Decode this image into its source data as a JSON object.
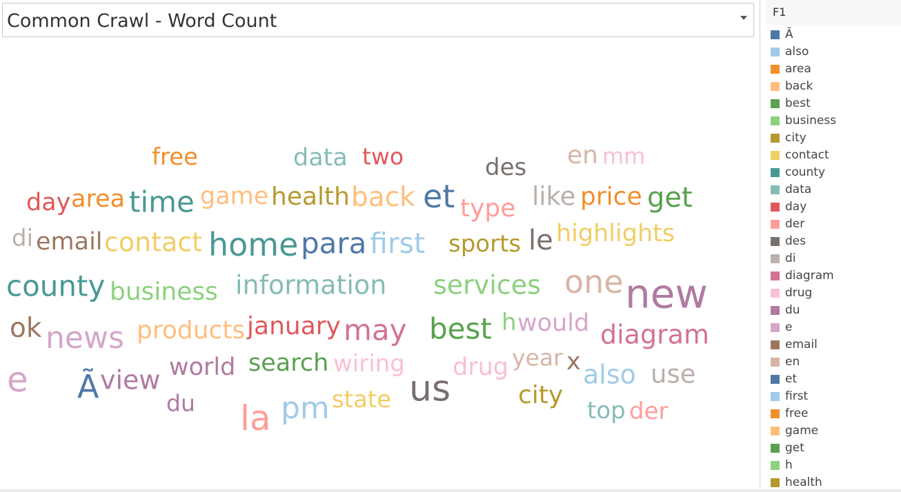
{
  "header": {
    "title": "Common Crawl - Word Count"
  },
  "legend": {
    "title": "F1",
    "items": [
      {
        "label": "Ã",
        "color": "#4e79a7"
      },
      {
        "label": "also",
        "color": "#a0cbe8"
      },
      {
        "label": "area",
        "color": "#f28e2b"
      },
      {
        "label": "back",
        "color": "#ffbe7d"
      },
      {
        "label": "best",
        "color": "#59a14f"
      },
      {
        "label": "business",
        "color": "#8cd17d"
      },
      {
        "label": "city",
        "color": "#b6992d"
      },
      {
        "label": "contact",
        "color": "#f1ce63"
      },
      {
        "label": "county",
        "color": "#499894"
      },
      {
        "label": "data",
        "color": "#86bcb6"
      },
      {
        "label": "day",
        "color": "#e15759"
      },
      {
        "label": "der",
        "color": "#ff9d9a"
      },
      {
        "label": "des",
        "color": "#79706e"
      },
      {
        "label": "di",
        "color": "#bab0ac"
      },
      {
        "label": "diagram",
        "color": "#d37295"
      },
      {
        "label": "drug",
        "color": "#fabfd2"
      },
      {
        "label": "du",
        "color": "#b07aa1"
      },
      {
        "label": "e",
        "color": "#d4a6c8"
      },
      {
        "label": "email",
        "color": "#9d7660"
      },
      {
        "label": "en",
        "color": "#d7b5a6"
      },
      {
        "label": "et",
        "color": "#4e79a7"
      },
      {
        "label": "first",
        "color": "#a0cbe8"
      },
      {
        "label": "free",
        "color": "#f28e2b"
      },
      {
        "label": "game",
        "color": "#ffbe7d"
      },
      {
        "label": "get",
        "color": "#59a14f"
      },
      {
        "label": "h",
        "color": "#8cd17d"
      },
      {
        "label": "health",
        "color": "#b6992d"
      }
    ]
  },
  "chart_data": {
    "type": "wordcloud",
    "words": [
      {
        "text": "free",
        "color": "#f28e2b",
        "weight": 34
      },
      {
        "text": "data",
        "color": "#86bcb6",
        "weight": 35
      },
      {
        "text": "two",
        "color": "#e15759",
        "weight": 33
      },
      {
        "text": "des",
        "color": "#79706e",
        "weight": 34
      },
      {
        "text": "en",
        "color": "#d7b5a6",
        "weight": 36
      },
      {
        "text": "mm",
        "color": "#fabfd2",
        "weight": 32
      },
      {
        "text": "day",
        "color": "#e15759",
        "weight": 35
      },
      {
        "text": "area",
        "color": "#f28e2b",
        "weight": 35
      },
      {
        "text": "time",
        "color": "#499894",
        "weight": 42
      },
      {
        "text": "game",
        "color": "#ffbe7d",
        "weight": 35
      },
      {
        "text": "health",
        "color": "#b6992d",
        "weight": 36
      },
      {
        "text": "back",
        "color": "#ffbe7d",
        "weight": 39
      },
      {
        "text": "et",
        "color": "#4e79a7",
        "weight": 46
      },
      {
        "text": "type",
        "color": "#ff9d9a",
        "weight": 36
      },
      {
        "text": "like",
        "color": "#bab0ac",
        "weight": 37
      },
      {
        "text": "price",
        "color": "#f28e2b",
        "weight": 36
      },
      {
        "text": "get",
        "color": "#59a14f",
        "weight": 40
      },
      {
        "text": "di",
        "color": "#bab0ac",
        "weight": 34
      },
      {
        "text": "email",
        "color": "#9d7660",
        "weight": 35
      },
      {
        "text": "contact",
        "color": "#f1ce63",
        "weight": 38
      },
      {
        "text": "home",
        "color": "#499894",
        "weight": 46
      },
      {
        "text": "para",
        "color": "#4e79a7",
        "weight": 42
      },
      {
        "text": "first",
        "color": "#a0cbe8",
        "weight": 41
      },
      {
        "text": "sports",
        "color": "#b6992d",
        "weight": 34
      },
      {
        "text": "le",
        "color": "#79706e",
        "weight": 40
      },
      {
        "text": "highlights",
        "color": "#f1ce63",
        "weight": 35
      },
      {
        "text": "county",
        "color": "#499894",
        "weight": 42
      },
      {
        "text": "business",
        "color": "#8cd17d",
        "weight": 36
      },
      {
        "text": "information",
        "color": "#86bcb6",
        "weight": 38
      },
      {
        "text": "services",
        "color": "#8cd17d",
        "weight": 38
      },
      {
        "text": "one",
        "color": "#d7b5a6",
        "weight": 46
      },
      {
        "text": "new",
        "color": "#b07aa1",
        "weight": 58
      },
      {
        "text": "ok",
        "color": "#9d7660",
        "weight": 39
      },
      {
        "text": "news",
        "color": "#d4a6c8",
        "weight": 44
      },
      {
        "text": "products",
        "color": "#ffbe7d",
        "weight": 36
      },
      {
        "text": "january",
        "color": "#e15759",
        "weight": 36
      },
      {
        "text": "may",
        "color": "#d37295",
        "weight": 42
      },
      {
        "text": "best",
        "color": "#59a14f",
        "weight": 42
      },
      {
        "text": "h",
        "color": "#8cd17d",
        "weight": 34
      },
      {
        "text": "would",
        "color": "#d4a6c8",
        "weight": 35
      },
      {
        "text": "diagram",
        "color": "#d37295",
        "weight": 38
      },
      {
        "text": "e",
        "color": "#d4a6c8",
        "weight": 50
      },
      {
        "text": "Ã",
        "color": "#4e79a7",
        "weight": 46
      },
      {
        "text": "view",
        "color": "#b07aa1",
        "weight": 38
      },
      {
        "text": "world",
        "color": "#b07aa1",
        "weight": 35
      },
      {
        "text": "search",
        "color": "#59a14f",
        "weight": 35
      },
      {
        "text": "wiring",
        "color": "#fabfd2",
        "weight": 34
      },
      {
        "text": "us",
        "color": "#79706e",
        "weight": 52
      },
      {
        "text": "drug",
        "color": "#fabfd2",
        "weight": 35
      },
      {
        "text": "year",
        "color": "#d7b5a6",
        "weight": 33
      },
      {
        "text": "x",
        "color": "#9d7660",
        "weight": 35
      },
      {
        "text": "also",
        "color": "#a0cbe8",
        "weight": 38
      },
      {
        "text": "use",
        "color": "#bab0ac",
        "weight": 37
      },
      {
        "text": "du",
        "color": "#b07aa1",
        "weight": 33
      },
      {
        "text": "la",
        "color": "#ff9d9a",
        "weight": 50
      },
      {
        "text": "pm",
        "color": "#a0cbe8",
        "weight": 44
      },
      {
        "text": "state",
        "color": "#f1ce63",
        "weight": 34
      },
      {
        "text": "city",
        "color": "#b6992d",
        "weight": 36
      },
      {
        "text": "top",
        "color": "#86bcb6",
        "weight": 34
      },
      {
        "text": "der",
        "color": "#ff9d9a",
        "weight": 34
      }
    ]
  }
}
